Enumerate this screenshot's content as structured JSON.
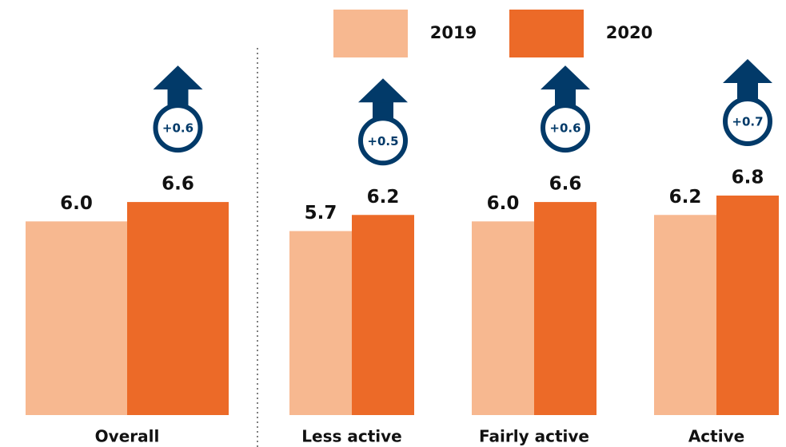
{
  "chart_data": {
    "type": "bar",
    "categories": [
      "Overall",
      "Less active",
      "Fairly active",
      "Active"
    ],
    "series": [
      {
        "name": "2019",
        "color": "#f7b890",
        "values": [
          6.0,
          5.7,
          6.0,
          6.2
        ],
        "value_labels": [
          "6.0",
          "5.7",
          "6.0",
          "6.2"
        ]
      },
      {
        "name": "2020",
        "color": "#ec6a28",
        "values": [
          6.6,
          6.2,
          6.6,
          6.8
        ],
        "value_labels": [
          "6.6",
          "6.2",
          "6.6",
          "6.8"
        ]
      }
    ],
    "annotations": [
      "+0.6",
      "+0.5",
      "+0.6",
      "+0.7"
    ],
    "annotation_color": "#023a69"
  }
}
